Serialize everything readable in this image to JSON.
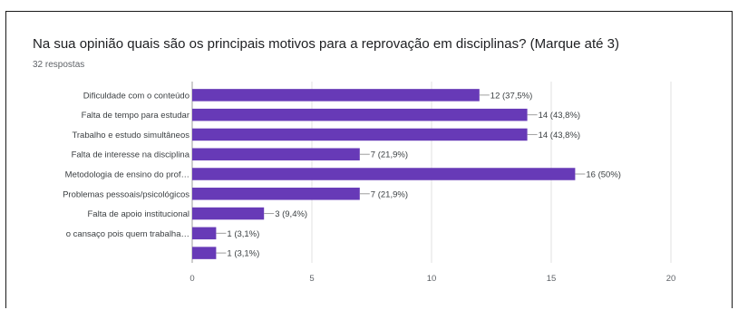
{
  "header": {
    "title": "Na sua opinião quais são os principais motivos para a reprovação em disciplinas? (Marque até 3)",
    "responses": "32 respostas"
  },
  "colors": {
    "bar": "#673ab7",
    "grid": "#e0e0e0",
    "axis": "#9e9e9e",
    "leader": "#9e9e9e"
  },
  "chart_data": {
    "type": "bar",
    "orientation": "horizontal",
    "title": "Na sua opinião quais são os principais motivos para a reprovação em disciplinas? (Marque até 3)",
    "subtitle": "32 respostas",
    "categories": [
      "Dificuldade com o conteúdo",
      "Falta de tempo para estudar",
      "Trabalho e estudo simultâneos",
      "Falta de interesse na disciplina",
      "Metodologia de ensino do prof…",
      "Problemas pessoais/psicológicos",
      "Falta de apoio institucional",
      "o cansaço pois quem trabalha…",
      ""
    ],
    "values": [
      12,
      14,
      14,
      7,
      16,
      7,
      3,
      1,
      1
    ],
    "data_labels": [
      "12 (37,5%)",
      "14 (43,8%)",
      "14 (43,8%)",
      "7 (21,9%)",
      "16 (50%)",
      "7 (21,9%)",
      "3 (9,4%)",
      "1 (3,1%)",
      "1 (3,1%)"
    ],
    "xlim": [
      0,
      20
    ],
    "xticks": [
      0,
      5,
      10,
      15,
      20
    ],
    "grid": true,
    "legend": "none"
  }
}
